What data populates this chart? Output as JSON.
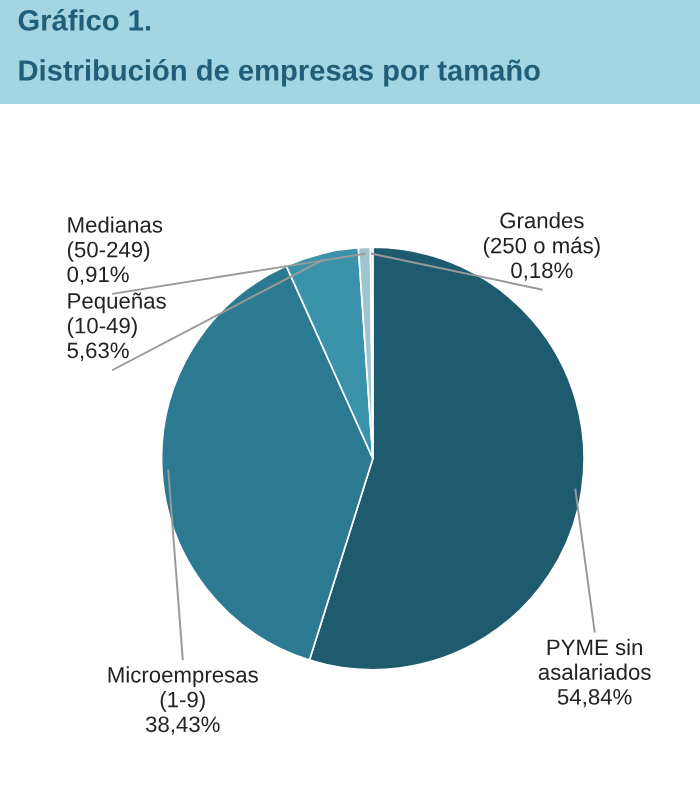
{
  "chart_data": {
    "type": "pie",
    "title": "Gráfico 1.",
    "subtitle": "Distribución de empresas por tamaño",
    "categories": [
      "PYME sin\nasalariados",
      "Microempresas\n(1-9)",
      "Pequeñas\n(10-49)",
      "Medianas\n(50-249)",
      "Grandes\n(250 o más)"
    ],
    "values": [
      54.84,
      38.43,
      5.63,
      0.91,
      0.18
    ],
    "value_labels": [
      "54,84%",
      "38,43%",
      "5,63%",
      "0,91%",
      "0,18%"
    ],
    "colors": [
      "#1f5b6f",
      "#2b7a91",
      "#3a93ab",
      "#9fc3cf",
      "#c9dde4"
    ],
    "legend": false
  }
}
